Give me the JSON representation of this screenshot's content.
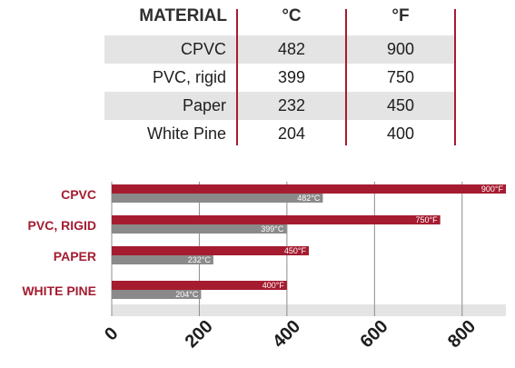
{
  "table": {
    "headers": [
      "MATERIAL",
      "°C",
      "°F"
    ],
    "rows": [
      {
        "material": "CPVC",
        "c": "482",
        "f": "900"
      },
      {
        "material": "PVC, rigid",
        "c": "399",
        "f": "750"
      },
      {
        "material": "Paper",
        "c": "232",
        "f": "450"
      },
      {
        "material": "White Pine",
        "c": "204",
        "f": "400"
      }
    ]
  },
  "colors": {
    "accent": "#a51c30",
    "celsius_bar": "#8a8a8a",
    "shade": "#e4e4e4"
  },
  "chart_data": {
    "type": "bar",
    "orientation": "horizontal",
    "categories": [
      "CPVC",
      "PVC, RIGID",
      "PAPER",
      "WHITE PINE"
    ],
    "series": [
      {
        "unit": "°F",
        "values": [
          900,
          750,
          450,
          400
        ],
        "labels": [
          "900°F",
          "750°F",
          "450°F",
          "400°F"
        ],
        "color": "#a51c30"
      },
      {
        "unit": "°C",
        "values": [
          482,
          399,
          232,
          204
        ],
        "labels": [
          "482°C",
          "399°C",
          "232°C",
          "204°C"
        ],
        "color": "#8a8a8a"
      }
    ],
    "xlim": [
      0,
      900
    ],
    "xticks": [
      0,
      200,
      400,
      600,
      800
    ],
    "xtick_labels": [
      "0",
      "200",
      "400",
      "600",
      "800"
    ],
    "grid": true,
    "legend": "none"
  }
}
